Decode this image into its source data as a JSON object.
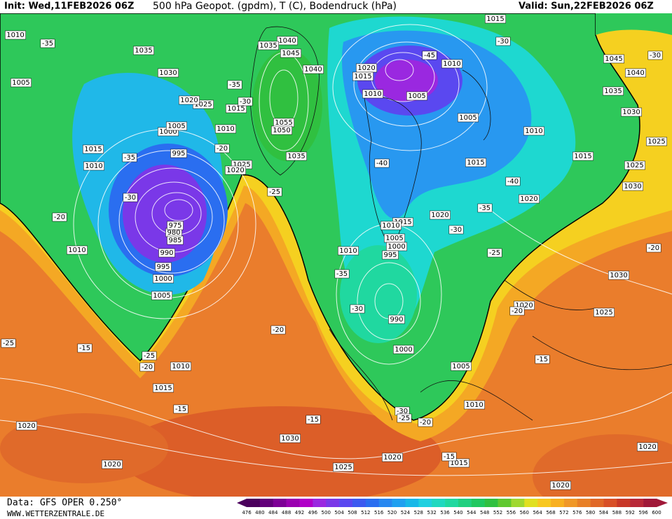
{
  "header": {
    "init": "Init: Wed,11FEB2026 06Z",
    "title": "500 hPa Geopot. (gpdm), T (C), Bodendruck (hPa)",
    "valid": "Valid: Sun,22FEB2026 06Z"
  },
  "footer": {
    "data": "Data: GFS OPER 0.250°",
    "site": "WWW.WETTERZENTRALE.DE"
  },
  "colorbar": {
    "labels": [
      476,
      480,
      484,
      488,
      492,
      496,
      500,
      504,
      508,
      512,
      516,
      520,
      524,
      528,
      532,
      536,
      540,
      544,
      548,
      552,
      556,
      560,
      564,
      568,
      572,
      576,
      580,
      584,
      588,
      592,
      596,
      600
    ],
    "colors": [
      "#4a005c",
      "#62007a",
      "#7d0096",
      "#9a00b0",
      "#b000c8",
      "#9a28e0",
      "#7a38e8",
      "#5a48f0",
      "#3c5af0",
      "#2a6ef0",
      "#2888f0",
      "#20a0f0",
      "#18b8e8",
      "#20d0e0",
      "#20d8c0",
      "#20d8a0",
      "#20d080",
      "#20c860",
      "#30c040",
      "#60c830",
      "#a0d830",
      "#e0e020",
      "#f8c820",
      "#f8b020",
      "#f09828",
      "#e88028",
      "#e06828",
      "#d85028",
      "#c83828",
      "#b82838",
      "#a01838"
    ]
  },
  "map": {
    "pressure_labels": [
      1010,
      1035,
      1040,
      1035,
      1045,
      1030,
      1005,
      1040,
      1020,
      1015,
      1010,
      1005,
      1010,
      1015,
      1025,
      1020,
      1015,
      1010,
      1000,
      1005,
      1055,
      1050,
      1015,
      995,
      1035,
      1010,
      1025,
      1020,
      1005,
      1010,
      1015,
      1015,
      1020,
      1045,
      1040,
      1035,
      1030,
      1025,
      1025,
      1030,
      1020,
      1015,
      1010,
      1005,
      1000,
      995,
      1010,
      980,
      975,
      985,
      990,
      995,
      1000,
      1005,
      1010,
      990,
      1000,
      1005,
      1010,
      1015,
      1010,
      1020,
      1025,
      1030,
      1020,
      1030,
      1020,
      1025,
      1020,
      1015,
      1020,
      1020
    ],
    "temperature_labels": [
      -35,
      -30,
      -45,
      -35,
      -30,
      -35,
      -30,
      -20,
      -25,
      -20,
      -40,
      -40,
      -35,
      -30,
      -25,
      -20,
      -35,
      -30,
      -20,
      -15,
      -25,
      -20,
      -15,
      -15,
      -30,
      -25,
      -20,
      -15,
      -15,
      -30,
      -20,
      -25
    ]
  }
}
